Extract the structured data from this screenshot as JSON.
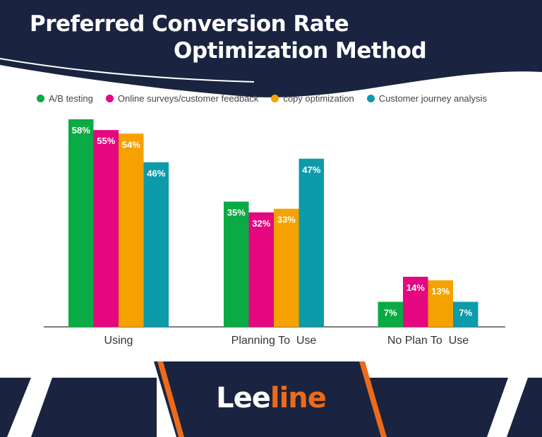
{
  "title_line1": "Preferred Conversion Rate",
  "title_line2": "Optimization Method",
  "logo": {
    "part1": "Lee",
    "part2": "line"
  },
  "colors": {
    "navy": "#1a2440",
    "orange": "#ee6a1a"
  },
  "chart_data": {
    "type": "bar",
    "categories": [
      "Using",
      "Planning To  Use",
      "No Plan To  Use"
    ],
    "series": [
      {
        "name": "A/B testing",
        "color": "#0aaa44",
        "values": [
          58,
          35,
          7
        ]
      },
      {
        "name": "Online surveys/customer feedback",
        "color": "#e5077f",
        "values": [
          55,
          32,
          14
        ]
      },
      {
        "name": "copy optimization",
        "color": "#f5a100",
        "values": [
          54,
          33,
          13
        ]
      },
      {
        "name": "Customer journey analysis",
        "color": "#0c9ba9",
        "values": [
          46,
          47,
          7
        ]
      }
    ],
    "value_suffix": "%",
    "ylim": [
      0,
      58
    ],
    "grid": false,
    "legend": "top"
  }
}
